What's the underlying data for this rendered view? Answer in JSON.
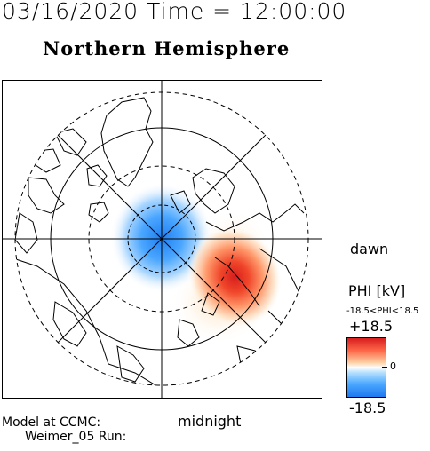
{
  "header": {
    "date_time": "03/16/2020 Time = 12:00:00",
    "hemisphere_title": "Northern Hemisphere"
  },
  "map": {
    "dawn_label": "dawn",
    "midnight_label": "midnight",
    "projection": "polar stereographic (north pole centered)",
    "potential_pattern": {
      "negative_cell": "dusk side (left), centered near pole",
      "positive_cell": "dawn side (right), stronger, centered below-right of pole"
    },
    "colors": {
      "positive": "#d81e1e",
      "negative": "#1e78f0",
      "coastline": "#000000"
    }
  },
  "legend": {
    "quantity_label": "PHI [kV]",
    "range_text": "-18.5<PHI<18.5",
    "max_label": "+18.5",
    "zero_label": "0",
    "min_label": "-18.5"
  },
  "footer": {
    "model_line1": "Model at CCMC:",
    "model_line2": "Weimer_05 Run:"
  }
}
